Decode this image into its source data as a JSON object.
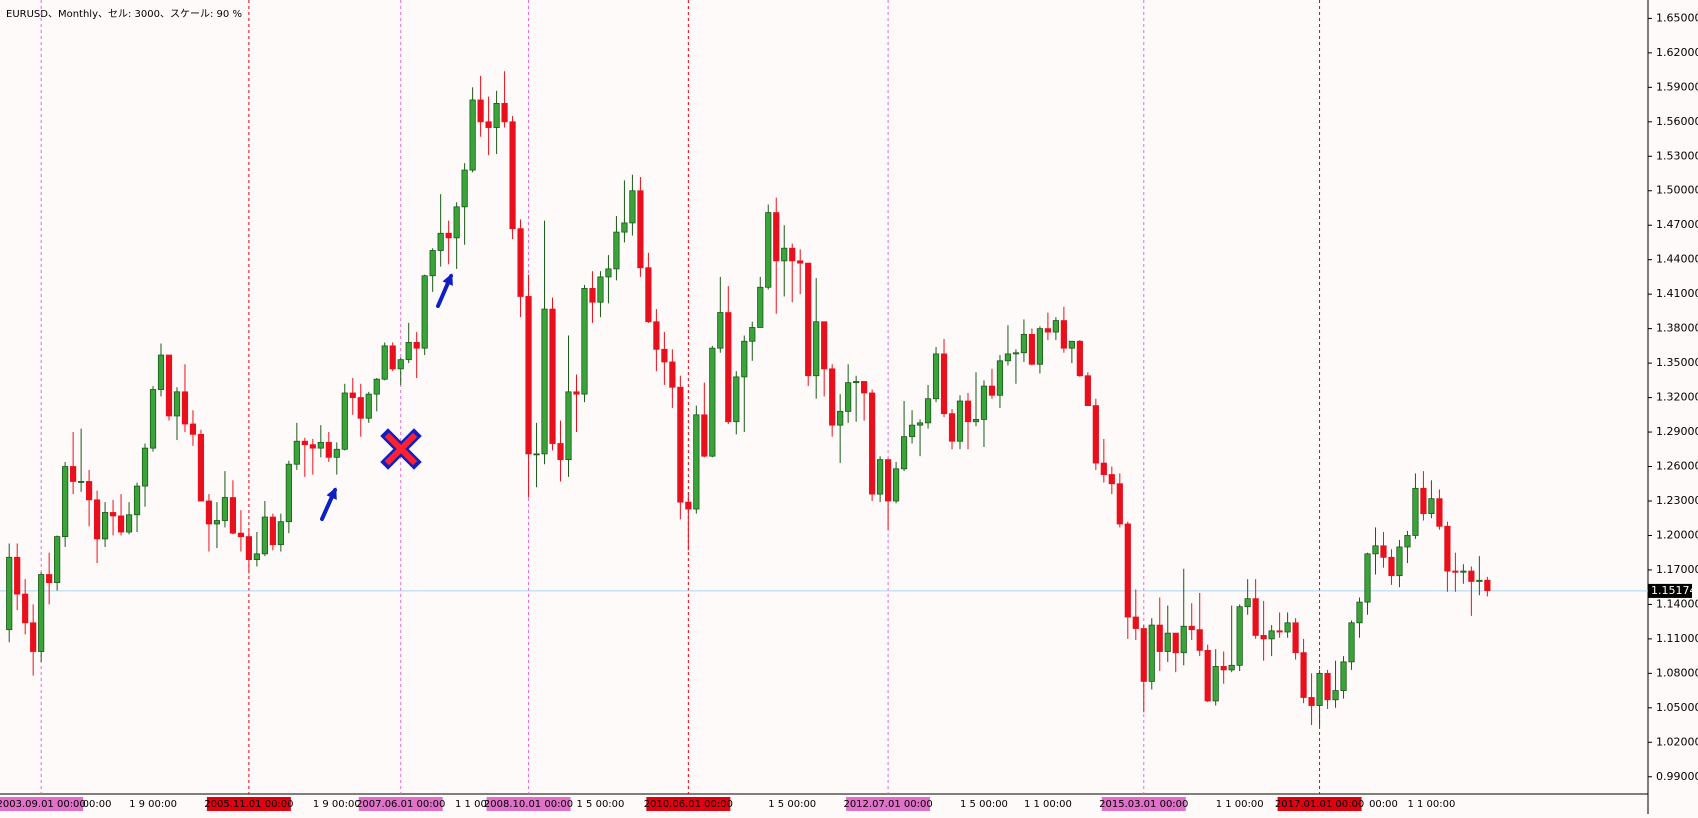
{
  "chart_data": {
    "type": "candlestick",
    "title": "EURUSD、Monthly、セル: 3000、スケール: 90 %",
    "categories": [
      null,
      null,
      null,
      null,
      "2003.09.01 00:00",
      null,
      null,
      null,
      null,
      null,
      null,
      "00:00",
      null,
      null,
      null,
      null,
      null,
      null,
      "1 9 00:00",
      null,
      null,
      null,
      null,
      null,
      null,
      null,
      null,
      null,
      null,
      null,
      "2005.11.01 00:00",
      null,
      null,
      null,
      null,
      null,
      null,
      null,
      null,
      null,
      null,
      "1 9 00:00",
      null,
      null,
      null,
      null,
      null,
      null,
      null,
      "2007.06.01 00:00",
      null,
      null,
      null,
      null,
      null,
      null,
      null,
      null,
      "1 1 00:",
      null,
      null,
      null,
      null,
      null,
      null,
      "2008.10.01 00:00",
      null,
      null,
      null,
      null,
      null,
      null,
      null,
      null,
      "1 5 00:00",
      null,
      null,
      null,
      null,
      null,
      null,
      null,
      null,
      null,
      null,
      "2010.06.01 00:00",
      null,
      null,
      null,
      null,
      null,
      null,
      null,
      null,
      null,
      null,
      null,
      null,
      "1 5 00:00",
      null,
      null,
      null,
      null,
      null,
      null,
      null,
      null,
      null,
      null,
      null,
      "2012.07.01 00:00",
      null,
      null,
      null,
      null,
      null,
      null,
      null,
      null,
      null,
      null,
      null,
      "1 5 00:00",
      null,
      null,
      null,
      null,
      null,
      null,
      null,
      "1 1 00:00",
      null,
      null,
      null,
      null,
      null,
      null,
      null,
      null,
      null,
      null,
      null,
      "2015.03.01 00:00",
      null,
      null,
      null,
      null,
      null,
      null,
      null,
      null,
      null,
      null,
      null,
      "1 1 00:00",
      null,
      null,
      null,
      null,
      null,
      null,
      null,
      null,
      null,
      "2017.01.01 00:00",
      null,
      null,
      null,
      null,
      null,
      null,
      null,
      "00:00",
      null,
      null,
      null,
      null,
      null,
      "1 1 00:00",
      null,
      null,
      null,
      null,
      null,
      null,
      null
    ],
    "open": [
      1.118,
      1.181,
      1.149,
      1.124,
      1.099,
      1.166,
      1.159,
      1.199,
      1.26,
      1.247,
      1.247,
      1.231,
      1.197,
      1.22,
      1.217,
      1.203,
      1.218,
      1.243,
      1.276,
      1.327,
      1.357,
      1.304,
      1.325,
      1.297,
      1.288,
      1.23,
      1.21,
      1.213,
      1.233,
      1.202,
      1.199,
      1.179,
      1.184,
      1.216,
      1.192,
      1.212,
      1.262,
      1.282,
      1.279,
      1.276,
      1.281,
      1.268,
      1.275,
      1.324,
      1.32,
      1.302,
      1.323,
      1.336,
      1.365,
      1.345,
      1.353,
      1.368,
      1.363,
      1.426,
      1.448,
      1.463,
      1.459,
      1.486,
      1.518,
      1.579,
      1.56,
      1.555,
      1.576,
      1.56,
      1.467,
      1.408,
      1.271,
      1.271,
      1.397,
      1.28,
      1.266,
      1.325,
      1.323,
      1.415,
      1.403,
      1.425,
      1.432,
      1.464,
      1.472,
      1.5,
      1.433,
      1.386,
      1.362,
      1.351,
      1.329,
      1.229,
      1.223,
      1.305,
      1.269,
      1.363,
      1.394,
      1.299,
      1.338,
      1.369,
      1.381,
      1.416,
      1.481,
      1.439,
      1.45,
      1.439,
      1.437,
      1.339,
      1.386,
      1.345,
      1.296,
      1.308,
      1.333,
      1.334,
      1.324,
      1.236,
      1.266,
      1.23,
      1.258,
      1.286,
      1.296,
      1.298,
      1.319,
      1.358,
      1.306,
      1.282,
      1.317,
      1.299,
      1.301,
      1.33,
      1.322,
      1.352,
      1.358,
      1.359,
      1.375,
      1.349,
      1.38,
      1.377,
      1.387,
      1.363,
      1.369,
      1.339,
      1.313,
      1.263,
      1.253,
      1.245,
      1.21,
      1.129,
      1.119,
      1.073,
      1.122,
      1.099,
      1.115,
      1.098,
      1.121,
      1.118,
      1.1,
      1.056,
      1.086,
      1.083,
      1.087,
      1.138,
      1.145,
      1.113,
      1.11,
      1.117,
      1.116,
      1.124,
      1.098,
      1.059,
      1.052,
      1.08,
      1.057,
      1.065,
      1.09,
      1.124,
      1.142,
      1.184,
      1.191,
      1.181,
      1.165,
      1.19,
      1.2,
      1.241,
      1.219,
      1.232,
      1.208,
      1.169,
      1.168,
      1.169,
      1.16,
      1.161
    ],
    "high": [
      1.193,
      1.193,
      1.162,
      1.14,
      1.168,
      1.185,
      1.2,
      1.264,
      1.29,
      1.293,
      1.257,
      1.239,
      1.229,
      1.231,
      1.236,
      1.229,
      1.246,
      1.28,
      1.33,
      1.367,
      1.357,
      1.329,
      1.349,
      1.309,
      1.292,
      1.236,
      1.229,
      1.256,
      1.248,
      1.222,
      1.206,
      1.203,
      1.23,
      1.219,
      1.219,
      1.265,
      1.298,
      1.285,
      1.284,
      1.296,
      1.29,
      1.281,
      1.332,
      1.337,
      1.332,
      1.325,
      1.337,
      1.368,
      1.368,
      1.355,
      1.385,
      1.377,
      1.427,
      1.45,
      1.497,
      1.474,
      1.49,
      1.524,
      1.59,
      1.6,
      1.582,
      1.587,
      1.604,
      1.565,
      1.475,
      1.427,
      1.298,
      1.474,
      1.407,
      1.3,
      1.374,
      1.34,
      1.418,
      1.43,
      1.43,
      1.444,
      1.478,
      1.509,
      1.514,
      1.512,
      1.446,
      1.397,
      1.377,
      1.362,
      1.339,
      1.237,
      1.313,
      1.333,
      1.365,
      1.425,
      1.417,
      1.343,
      1.374,
      1.386,
      1.425,
      1.488,
      1.494,
      1.47,
      1.454,
      1.449,
      1.437,
      1.424,
      1.381,
      1.349,
      1.323,
      1.349,
      1.339,
      1.332,
      1.327,
      1.269,
      1.267,
      1.264,
      1.317,
      1.309,
      1.301,
      1.331,
      1.364,
      1.371,
      1.31,
      1.322,
      1.324,
      1.342,
      1.335,
      1.345,
      1.357,
      1.383,
      1.362,
      1.388,
      1.38,
      1.382,
      1.394,
      1.39,
      1.399,
      1.368,
      1.37,
      1.342,
      1.319,
      1.284,
      1.26,
      1.254,
      1.212,
      1.153,
      1.122,
      1.128,
      1.146,
      1.139,
      1.115,
      1.171,
      1.141,
      1.15,
      1.105,
      1.101,
      1.099,
      1.139,
      1.14,
      1.162,
      1.162,
      1.143,
      1.122,
      1.133,
      1.133,
      1.128,
      1.11,
      1.08,
      1.083,
      1.083,
      1.091,
      1.095,
      1.126,
      1.146,
      1.185,
      1.207,
      1.203,
      1.188,
      1.196,
      1.204,
      1.254,
      1.256,
      1.248,
      1.24,
      1.212,
      1.185,
      1.175,
      1.173,
      1.182,
      1.164
    ],
    "low": [
      1.107,
      1.135,
      1.114,
      1.078,
      1.09,
      1.14,
      1.152,
      1.19,
      1.236,
      1.238,
      1.208,
      1.176,
      1.19,
      1.2,
      1.2,
      1.201,
      1.203,
      1.225,
      1.273,
      1.321,
      1.3,
      1.283,
      1.29,
      1.278,
      1.23,
      1.186,
      1.189,
      1.207,
      1.201,
      1.186,
      1.167,
      1.173,
      1.182,
      1.187,
      1.186,
      1.202,
      1.257,
      1.251,
      1.253,
      1.268,
      1.264,
      1.253,
      1.274,
      1.305,
      1.286,
      1.298,
      1.308,
      1.335,
      1.343,
      1.331,
      1.35,
      1.337,
      1.357,
      1.412,
      1.434,
      1.436,
      1.432,
      1.453,
      1.516,
      1.547,
      1.531,
      1.532,
      1.555,
      1.458,
      1.39,
      1.233,
      1.242,
      1.262,
      1.274,
      1.247,
      1.251,
      1.29,
      1.316,
      1.385,
      1.39,
      1.402,
      1.422,
      1.455,
      1.461,
      1.425,
      1.385,
      1.343,
      1.331,
      1.311,
      1.214,
      1.187,
      1.219,
      1.268,
      1.268,
      1.359,
      1.297,
      1.288,
      1.29,
      1.352,
      1.386,
      1.414,
      1.393,
      1.408,
      1.403,
      1.41,
      1.33,
      1.319,
      1.321,
      1.286,
      1.263,
      1.298,
      1.299,
      1.3,
      1.23,
      1.229,
      1.205,
      1.228,
      1.256,
      1.28,
      1.269,
      1.293,
      1.316,
      1.303,
      1.275,
      1.275,
      1.275,
      1.295,
      1.277,
      1.319,
      1.311,
      1.348,
      1.332,
      1.351,
      1.348,
      1.341,
      1.37,
      1.37,
      1.359,
      1.35,
      1.338,
      1.314,
      1.257,
      1.246,
      1.236,
      1.207,
      1.11,
      1.109,
      1.046,
      1.066,
      1.082,
      1.09,
      1.081,
      1.087,
      1.109,
      1.095,
      1.055,
      1.052,
      1.071,
      1.081,
      1.082,
      1.131,
      1.11,
      1.091,
      1.095,
      1.111,
      1.111,
      1.092,
      1.054,
      1.035,
      1.034,
      1.049,
      1.05,
      1.058,
      1.083,
      1.111,
      1.131,
      1.166,
      1.172,
      1.157,
      1.155,
      1.176,
      1.197,
      1.213,
      1.215,
      1.205,
      1.151,
      1.151,
      1.158,
      1.13,
      1.148,
      1.147
    ],
    "close": [
      1.181,
      1.149,
      1.124,
      1.099,
      1.166,
      1.159,
      1.199,
      1.26,
      1.247,
      1.247,
      1.231,
      1.197,
      1.22,
      1.217,
      1.203,
      1.218,
      1.243,
      1.276,
      1.327,
      1.357,
      1.304,
      1.325,
      1.297,
      1.288,
      1.23,
      1.21,
      1.213,
      1.233,
      1.202,
      1.199,
      1.179,
      1.184,
      1.216,
      1.192,
      1.212,
      1.262,
      1.282,
      1.279,
      1.276,
      1.281,
      1.268,
      1.275,
      1.324,
      1.32,
      1.302,
      1.323,
      1.336,
      1.365,
      1.345,
      1.353,
      1.368,
      1.363,
      1.426,
      1.448,
      1.463,
      1.459,
      1.486,
      1.518,
      1.579,
      1.56,
      1.555,
      1.576,
      1.56,
      1.467,
      1.408,
      1.271,
      1.271,
      1.397,
      1.28,
      1.266,
      1.325,
      1.323,
      1.415,
      1.403,
      1.425,
      1.432,
      1.464,
      1.472,
      1.5,
      1.433,
      1.386,
      1.362,
      1.351,
      1.329,
      1.229,
      1.223,
      1.305,
      1.269,
      1.363,
      1.394,
      1.299,
      1.338,
      1.369,
      1.381,
      1.416,
      1.481,
      1.439,
      1.45,
      1.439,
      1.437,
      1.339,
      1.386,
      1.345,
      1.296,
      1.308,
      1.333,
      1.334,
      1.324,
      1.236,
      1.266,
      1.23,
      1.258,
      1.286,
      1.296,
      1.298,
      1.319,
      1.358,
      1.306,
      1.282,
      1.317,
      1.299,
      1.301,
      1.33,
      1.322,
      1.352,
      1.358,
      1.359,
      1.375,
      1.349,
      1.38,
      1.377,
      1.387,
      1.363,
      1.369,
      1.339,
      1.313,
      1.263,
      1.253,
      1.245,
      1.21,
      1.129,
      1.119,
      1.073,
      1.122,
      1.099,
      1.115,
      1.098,
      1.121,
      1.118,
      1.1,
      1.056,
      1.086,
      1.083,
      1.087,
      1.138,
      1.145,
      1.113,
      1.11,
      1.117,
      1.116,
      1.124,
      1.098,
      1.059,
      1.052,
      1.08,
      1.057,
      1.065,
      1.09,
      1.124,
      1.142,
      1.184,
      1.191,
      1.181,
      1.165,
      1.19,
      1.2,
      1.241,
      1.219,
      1.232,
      1.208,
      1.169,
      1.168,
      1.169,
      1.16,
      1.161,
      1.152
    ],
    "up_color": "#3aa33a",
    "down_color": "#e8101c",
    "ylim": [
      0.975,
      1.666
    ],
    "yticks": [
      {
        "value": 1.65,
        "label": "1.65000"
      },
      {
        "value": 1.62,
        "label": "1.62000"
      },
      {
        "value": 1.59,
        "label": "1.59000"
      },
      {
        "value": 1.56,
        "label": "1.56000"
      },
      {
        "value": 1.53,
        "label": "1.53000"
      },
      {
        "value": 1.5,
        "label": "1.50000"
      },
      {
        "value": 1.47,
        "label": "1.47000"
      },
      {
        "value": 1.44,
        "label": "1.44000"
      },
      {
        "value": 1.41,
        "label": "1.41000"
      },
      {
        "value": 1.38,
        "label": "1.38000"
      },
      {
        "value": 1.35,
        "label": "1.35000"
      },
      {
        "value": 1.32,
        "label": "1.32000"
      },
      {
        "value": 1.29,
        "label": "1.29000"
      },
      {
        "value": 1.26,
        "label": "1.26000"
      },
      {
        "value": 1.23,
        "label": "1.23000"
      },
      {
        "value": 1.2,
        "label": "1.20000"
      },
      {
        "value": 1.17,
        "label": "1.17000"
      },
      {
        "value": 1.14,
        "label": "1.14000"
      },
      {
        "value": 1.11,
        "label": "1.11000"
      },
      {
        "value": 1.08,
        "label": "1.08000"
      },
      {
        "value": 1.05,
        "label": "1.05000"
      },
      {
        "value": 1.02,
        "label": "1.02000"
      },
      {
        "value": 0.99,
        "label": "0.99000"
      }
    ],
    "last_price": 1.15174,
    "grid": false
  }
}
